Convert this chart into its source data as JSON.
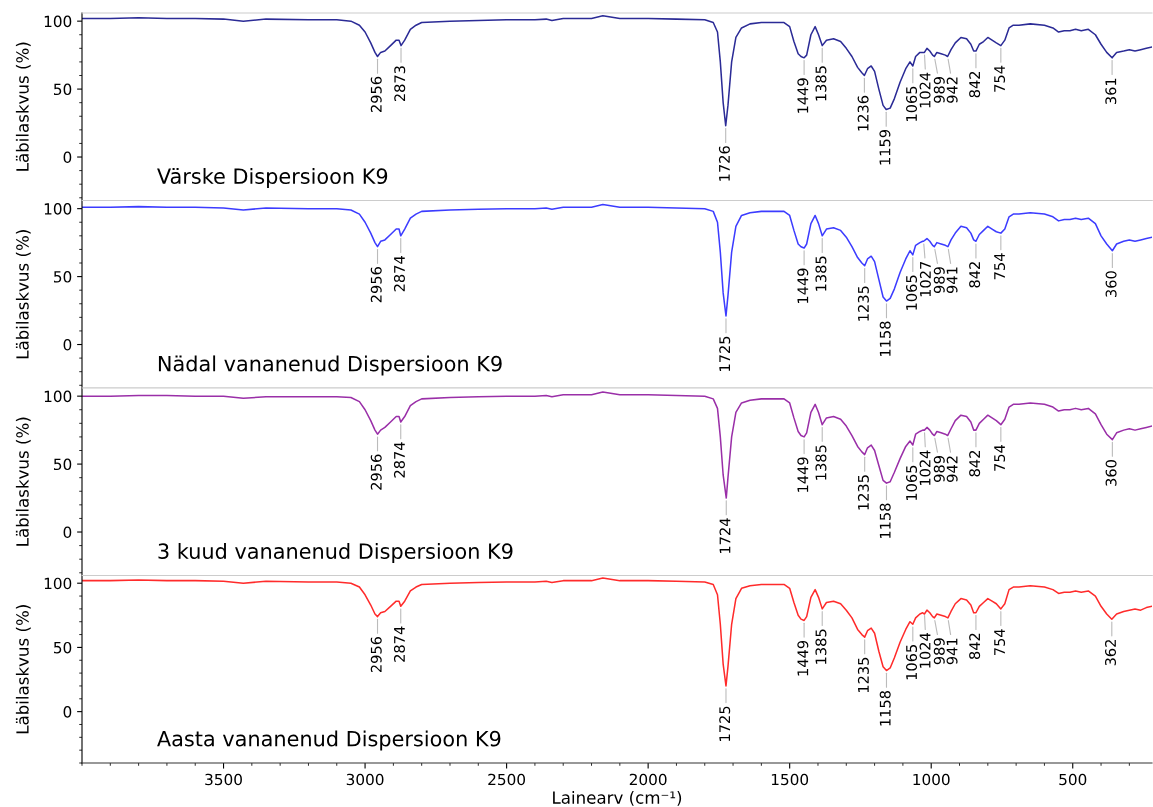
{
  "chart_data": [
    {
      "type": "line",
      "ylabel": "Läbilaskvus (%)",
      "xlim": [
        4000,
        220
      ],
      "xticks": [
        3500,
        3000,
        2500,
        2000,
        1500,
        1000,
        500
      ],
      "ylim": [
        -32,
        106
      ],
      "yticks": [
        0,
        50,
        100
      ],
      "tick_labels": "y",
      "grid": false,
      "legend": false,
      "x": [
        4000,
        3900,
        3800,
        3700,
        3600,
        3500,
        3430,
        3350,
        3200,
        3100,
        3050,
        3020,
        3000,
        2980,
        2965,
        2956,
        2945,
        2930,
        2910,
        2890,
        2880,
        2873,
        2860,
        2840,
        2820,
        2800,
        2700,
        2600,
        2500,
        2400,
        2360,
        2340,
        2300,
        2200,
        2160,
        2100,
        2000,
        1900,
        1800,
        1770,
        1755,
        1745,
        1735,
        1726,
        1718,
        1705,
        1690,
        1670,
        1640,
        1600,
        1520,
        1500,
        1485,
        1470,
        1460,
        1449,
        1440,
        1425,
        1410,
        1398,
        1385,
        1370,
        1345,
        1320,
        1300,
        1280,
        1260,
        1245,
        1236,
        1225,
        1212,
        1200,
        1185,
        1170,
        1159,
        1145,
        1130,
        1110,
        1090,
        1075,
        1065,
        1055,
        1040,
        1030,
        1024,
        1015,
        1005,
        995,
        989,
        980,
        965,
        950,
        942,
        930,
        915,
        895,
        875,
        860,
        850,
        842,
        830,
        815,
        800,
        785,
        770,
        754,
        740,
        725,
        710,
        690,
        650,
        600,
        570,
        550,
        530,
        510,
        490,
        470,
        445,
        420,
        400,
        380,
        361,
        345,
        320,
        300,
        280,
        260,
        240,
        220
      ],
      "series": [
        {
          "color": "#2b2b96",
          "values": [
            102,
            102,
            102.5,
            102,
            102,
            101.5,
            100,
            101.5,
            101,
            101,
            100,
            97,
            92,
            84,
            77,
            74,
            77,
            78,
            82,
            86,
            86,
            82,
            86,
            94,
            97,
            99,
            100,
            100.5,
            101,
            101,
            101.5,
            100.5,
            102,
            102,
            104,
            102,
            102,
            101.5,
            101,
            99,
            92,
            70,
            40,
            23,
            38,
            70,
            88,
            95,
            98,
            99,
            99,
            96,
            85,
            76,
            74,
            73,
            75,
            90,
            96,
            90,
            82,
            86,
            87,
            85,
            80,
            74,
            66,
            62,
            60,
            65,
            67,
            63,
            50,
            38,
            35,
            36,
            43,
            55,
            65,
            70,
            67,
            74,
            77,
            77,
            77,
            80,
            78,
            75,
            74,
            77,
            76,
            75,
            74,
            79,
            84,
            88,
            87,
            83,
            78,
            78,
            83,
            85,
            88,
            86,
            84,
            82,
            86,
            95,
            97,
            97,
            98,
            97,
            95,
            92,
            93,
            93,
            94,
            93,
            94,
            90,
            83,
            77,
            73,
            77,
            78,
            79,
            78,
            79,
            80,
            81
          ]
        }
      ],
      "annotations": [
        "Värske Dispersioon K9",
        {
          "text": "2956",
          "x": 2956,
          "y": 74
        },
        {
          "text": "2873",
          "x": 2873,
          "y": 82
        },
        {
          "text": "1726",
          "x": 1726,
          "y": 23
        },
        {
          "text": "1449",
          "x": 1449,
          "y": 73
        },
        {
          "text": "1385",
          "x": 1385,
          "y": 82
        },
        {
          "text": "1236",
          "x": 1236,
          "y": 60
        },
        {
          "text": "1159",
          "x": 1159,
          "y": 35
        },
        {
          "text": "1065",
          "x": 1065,
          "y": 67
        },
        {
          "text": "1024",
          "x": 1024,
          "y": 77
        },
        {
          "text": "989",
          "x": 989,
          "y": 74
        },
        {
          "text": "942",
          "x": 942,
          "y": 74
        },
        {
          "text": "842",
          "x": 842,
          "y": 78
        },
        {
          "text": "754",
          "x": 754,
          "y": 82
        },
        {
          "text": "361",
          "x": 361,
          "y": 73
        }
      ]
    },
    {
      "type": "line",
      "ylabel": "Läbilaskvus (%)",
      "xlim": [
        4000,
        220
      ],
      "xticks": [
        3500,
        3000,
        2500,
        2000,
        1500,
        1000,
        500
      ],
      "ylim": [
        -32,
        106
      ],
      "yticks": [
        0,
        50,
        100
      ],
      "tick_labels": "y",
      "grid": false,
      "legend": false,
      "x": [
        4000,
        3900,
        3800,
        3700,
        3600,
        3500,
        3430,
        3350,
        3200,
        3100,
        3050,
        3020,
        3000,
        2980,
        2965,
        2956,
        2945,
        2930,
        2910,
        2890,
        2880,
        2874,
        2860,
        2840,
        2820,
        2800,
        2700,
        2600,
        2500,
        2400,
        2360,
        2340,
        2300,
        2200,
        2160,
        2100,
        2000,
        1900,
        1800,
        1770,
        1755,
        1745,
        1735,
        1725,
        1718,
        1705,
        1690,
        1670,
        1640,
        1600,
        1520,
        1500,
        1485,
        1470,
        1460,
        1449,
        1440,
        1425,
        1410,
        1398,
        1385,
        1370,
        1345,
        1320,
        1300,
        1280,
        1260,
        1245,
        1235,
        1225,
        1212,
        1200,
        1185,
        1170,
        1158,
        1145,
        1130,
        1110,
        1090,
        1075,
        1065,
        1055,
        1040,
        1030,
        1027,
        1015,
        1005,
        995,
        989,
        980,
        965,
        950,
        941,
        930,
        915,
        895,
        875,
        860,
        850,
        842,
        830,
        815,
        800,
        785,
        770,
        754,
        740,
        725,
        710,
        690,
        650,
        600,
        570,
        550,
        530,
        510,
        490,
        470,
        445,
        420,
        400,
        380,
        360,
        345,
        320,
        300,
        280,
        260,
        240,
        220
      ],
      "series": [
        {
          "color": "#3c3cff",
          "values": [
            101,
            101,
            101.5,
            101,
            101,
            100.5,
            99,
            100.5,
            100,
            100,
            99,
            96,
            90,
            82,
            75,
            72,
            76,
            77,
            81,
            85,
            85,
            80,
            85,
            93,
            96,
            98,
            99,
            99.5,
            100,
            100,
            100.5,
            99.5,
            101,
            101,
            103,
            101,
            101,
            100.5,
            100,
            98,
            90,
            68,
            38,
            21,
            36,
            68,
            87,
            95,
            97,
            98,
            98,
            95,
            84,
            74,
            72,
            71,
            74,
            89,
            95,
            89,
            80,
            85,
            86,
            84,
            79,
            72,
            64,
            60,
            58,
            63,
            65,
            61,
            48,
            35,
            32,
            34,
            41,
            53,
            63,
            69,
            66,
            73,
            75,
            76,
            76,
            78,
            76,
            73,
            72,
            75,
            74,
            73,
            72,
            77,
            82,
            87,
            86,
            82,
            77,
            76,
            81,
            84,
            87,
            85,
            83,
            82,
            85,
            94,
            96,
            96,
            97,
            96,
            94,
            91,
            92,
            92,
            93,
            92,
            93,
            89,
            80,
            74,
            69,
            74,
            76,
            77,
            76,
            77,
            78,
            79
          ]
        }
      ],
      "annotations": [
        "Nädal vananenud Dispersioon K9",
        {
          "text": "2956",
          "x": 2956,
          "y": 72
        },
        {
          "text": "2874",
          "x": 2874,
          "y": 80
        },
        {
          "text": "1725",
          "x": 1725,
          "y": 21
        },
        {
          "text": "1449",
          "x": 1449,
          "y": 71
        },
        {
          "text": "1385",
          "x": 1385,
          "y": 80
        },
        {
          "text": "1235",
          "x": 1235,
          "y": 58
        },
        {
          "text": "1158",
          "x": 1158,
          "y": 32
        },
        {
          "text": "1065",
          "x": 1065,
          "y": 66
        },
        {
          "text": "1027",
          "x": 1027,
          "y": 76
        },
        {
          "text": "989",
          "x": 989,
          "y": 72
        },
        {
          "text": "941",
          "x": 941,
          "y": 72
        },
        {
          "text": "842",
          "x": 842,
          "y": 76
        },
        {
          "text": "754",
          "x": 754,
          "y": 82
        },
        {
          "text": "360",
          "x": 360,
          "y": 69
        }
      ]
    },
    {
      "type": "line",
      "ylabel": "Läbilaskvus (%)",
      "xlim": [
        4000,
        220
      ],
      "xticks": [
        3500,
        3000,
        2500,
        2000,
        1500,
        1000,
        500
      ],
      "ylim": [
        -32,
        106
      ],
      "yticks": [
        0,
        50,
        100
      ],
      "tick_labels": "y",
      "grid": false,
      "legend": false,
      "x": [
        4000,
        3900,
        3800,
        3700,
        3600,
        3500,
        3430,
        3350,
        3200,
        3100,
        3050,
        3020,
        3000,
        2980,
        2965,
        2956,
        2945,
        2930,
        2910,
        2890,
        2880,
        2874,
        2860,
        2840,
        2820,
        2800,
        2700,
        2600,
        2500,
        2400,
        2360,
        2340,
        2300,
        2200,
        2160,
        2100,
        2000,
        1900,
        1800,
        1770,
        1755,
        1745,
        1735,
        1724,
        1718,
        1705,
        1690,
        1670,
        1640,
        1600,
        1520,
        1500,
        1485,
        1470,
        1460,
        1449,
        1440,
        1425,
        1410,
        1398,
        1385,
        1370,
        1345,
        1320,
        1300,
        1280,
        1260,
        1245,
        1235,
        1225,
        1212,
        1200,
        1185,
        1170,
        1158,
        1145,
        1130,
        1110,
        1090,
        1075,
        1065,
        1055,
        1040,
        1030,
        1024,
        1015,
        1005,
        995,
        989,
        980,
        965,
        950,
        942,
        930,
        915,
        895,
        875,
        860,
        850,
        842,
        830,
        815,
        800,
        785,
        770,
        754,
        740,
        725,
        710,
        690,
        650,
        600,
        570,
        550,
        530,
        510,
        490,
        470,
        445,
        420,
        400,
        380,
        360,
        345,
        320,
        300,
        280,
        260,
        240,
        220
      ],
      "series": [
        {
          "color": "#9a2fa8",
          "values": [
            100,
            100,
            100.5,
            100.5,
            100,
            100,
            98.5,
            99.5,
            99.5,
            99.5,
            99,
            96,
            90,
            82,
            75,
            72,
            75,
            77,
            81,
            85,
            85,
            81,
            85,
            93,
            96,
            98,
            99,
            99.5,
            100,
            100,
            100.5,
            99.5,
            101,
            101,
            103,
            101,
            101,
            100.5,
            100,
            98,
            91,
            70,
            42,
            25,
            40,
            70,
            88,
            95,
            97,
            98,
            98,
            95,
            84,
            74,
            71,
            70,
            73,
            88,
            94,
            88,
            79,
            84,
            85,
            83,
            78,
            71,
            63,
            59,
            57,
            62,
            64,
            60,
            49,
            38,
            36,
            37,
            44,
            54,
            63,
            67,
            64,
            72,
            74,
            75,
            75,
            77,
            75,
            72,
            71,
            74,
            73,
            72,
            71,
            76,
            82,
            86,
            85,
            81,
            75,
            75,
            80,
            83,
            86,
            84,
            82,
            79,
            83,
            92,
            94,
            94,
            95,
            94,
            92,
            89,
            90,
            90,
            91,
            90,
            91,
            87,
            79,
            72,
            68,
            73,
            75,
            76,
            75,
            76,
            77,
            78
          ]
        }
      ],
      "annotations": [
        "3 kuud vananenud Dispersioon K9",
        {
          "text": "2956",
          "x": 2956,
          "y": 72
        },
        {
          "text": "2874",
          "x": 2874,
          "y": 81
        },
        {
          "text": "1724",
          "x": 1724,
          "y": 25
        },
        {
          "text": "1449",
          "x": 1449,
          "y": 70
        },
        {
          "text": "1385",
          "x": 1385,
          "y": 79
        },
        {
          "text": "1235",
          "x": 1235,
          "y": 57
        },
        {
          "text": "1158",
          "x": 1158,
          "y": 36
        },
        {
          "text": "1065",
          "x": 1065,
          "y": 64
        },
        {
          "text": "1024",
          "x": 1024,
          "y": 75
        },
        {
          "text": "989",
          "x": 989,
          "y": 71
        },
        {
          "text": "942",
          "x": 942,
          "y": 71
        },
        {
          "text": "842",
          "x": 842,
          "y": 75
        },
        {
          "text": "754",
          "x": 754,
          "y": 79
        },
        {
          "text": "360",
          "x": 360,
          "y": 68
        }
      ]
    },
    {
      "type": "line",
      "ylabel": "Läbilaskvus (%)",
      "xlabel": "Lainearv (cm⁻¹)",
      "xlim": [
        4000,
        220
      ],
      "xticks": [
        3500,
        3000,
        2500,
        2000,
        1500,
        1000,
        500
      ],
      "ylim": [
        -40,
        106
      ],
      "yticks": [
        0,
        50,
        100
      ],
      "grid": false,
      "legend": false,
      "x": [
        4000,
        3900,
        3800,
        3700,
        3600,
        3500,
        3430,
        3350,
        3200,
        3100,
        3050,
        3020,
        3000,
        2980,
        2965,
        2956,
        2945,
        2930,
        2910,
        2890,
        2880,
        2874,
        2860,
        2840,
        2820,
        2800,
        2700,
        2600,
        2500,
        2400,
        2360,
        2340,
        2300,
        2200,
        2160,
        2100,
        2000,
        1900,
        1800,
        1770,
        1755,
        1745,
        1735,
        1725,
        1718,
        1705,
        1690,
        1670,
        1640,
        1600,
        1520,
        1500,
        1485,
        1470,
        1460,
        1449,
        1440,
        1425,
        1410,
        1398,
        1385,
        1370,
        1345,
        1320,
        1300,
        1280,
        1260,
        1245,
        1235,
        1225,
        1212,
        1200,
        1185,
        1170,
        1158,
        1145,
        1130,
        1110,
        1090,
        1075,
        1065,
        1055,
        1040,
        1030,
        1024,
        1015,
        1005,
        995,
        989,
        980,
        965,
        950,
        941,
        930,
        915,
        895,
        875,
        860,
        850,
        842,
        830,
        815,
        800,
        785,
        770,
        754,
        740,
        725,
        710,
        690,
        650,
        600,
        570,
        550,
        530,
        510,
        490,
        470,
        445,
        420,
        400,
        380,
        362,
        345,
        320,
        300,
        280,
        260,
        240,
        220
      ],
      "series": [
        {
          "color": "#ff2b2b",
          "values": [
            102,
            102,
            102.5,
            102,
            102,
            101.5,
            100,
            101.5,
            101,
            101,
            100,
            97,
            91,
            83,
            76,
            74,
            77,
            78,
            82,
            86,
            86,
            82,
            86,
            94,
            97,
            99,
            100,
            100.5,
            101,
            101,
            101.5,
            100.5,
            102,
            102,
            104,
            102,
            102,
            101.5,
            101,
            99,
            91,
            68,
            37,
            20,
            35,
            68,
            88,
            96,
            98,
            99,
            99,
            96,
            85,
            75,
            72,
            71,
            74,
            89,
            95,
            89,
            80,
            85,
            86,
            84,
            79,
            73,
            64,
            60,
            58,
            63,
            65,
            61,
            47,
            35,
            32,
            34,
            42,
            54,
            64,
            70,
            68,
            73,
            76,
            77,
            76,
            79,
            77,
            74,
            73,
            76,
            75,
            74,
            73,
            78,
            84,
            88,
            87,
            83,
            77,
            77,
            82,
            85,
            88,
            86,
            84,
            80,
            84,
            95,
            97,
            97,
            98,
            97,
            95,
            92,
            93,
            93,
            94,
            93,
            94,
            90,
            82,
            76,
            72,
            76,
            78,
            79,
            80,
            79,
            81,
            82
          ]
        }
      ],
      "annotations": [
        "Aasta vananenud Dispersioon K9",
        {
          "text": "2956",
          "x": 2956,
          "y": 74
        },
        {
          "text": "2874",
          "x": 2874,
          "y": 82
        },
        {
          "text": "1725",
          "x": 1725,
          "y": 20
        },
        {
          "text": "1449",
          "x": 1449,
          "y": 71
        },
        {
          "text": "1385",
          "x": 1385,
          "y": 80
        },
        {
          "text": "1235",
          "x": 1235,
          "y": 58
        },
        {
          "text": "1158",
          "x": 1158,
          "y": 32
        },
        {
          "text": "1065",
          "x": 1065,
          "y": 68
        },
        {
          "text": "1024",
          "x": 1024,
          "y": 77
        },
        {
          "text": "989",
          "x": 989,
          "y": 73
        },
        {
          "text": "941",
          "x": 941,
          "y": 73
        },
        {
          "text": "842",
          "x": 842,
          "y": 77
        },
        {
          "text": "754",
          "x": 754,
          "y": 80
        },
        {
          "text": "362",
          "x": 362,
          "y": 72
        }
      ]
    }
  ]
}
